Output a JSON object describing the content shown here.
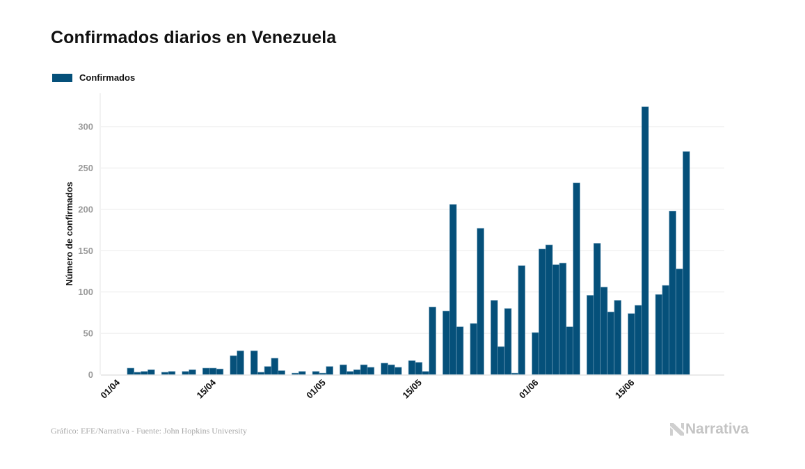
{
  "title": "Confirmados diarios en Venezuela",
  "footer": {
    "source": "Gráfico: EFE/Narrativa - Fuente: John Hopkins University",
    "logo_text": "Narrativa",
    "logo_icon": "narrativa-n-icon"
  },
  "colors": {
    "bar": "#05507a",
    "grid": "#eaeaea",
    "ytick": "#9a9a9a",
    "text": "#111111"
  },
  "chart_data": {
    "type": "bar",
    "title": "Confirmados diarios en Venezuela",
    "xlabel": "",
    "ylabel": "Número de confirmados",
    "ylim": [
      0,
      335
    ],
    "yticks": [
      0,
      50,
      100,
      150,
      200,
      250,
      300
    ],
    "grid": true,
    "legend": {
      "position": "top-left",
      "entries": [
        "Confirmados"
      ]
    },
    "x_start_date": "01/04",
    "x_day_count": 88,
    "xtick_labels": [
      {
        "label": "01/04",
        "day": 0
      },
      {
        "label": "15/04",
        "day": 14
      },
      {
        "label": "01/05",
        "day": 30
      },
      {
        "label": "15/05",
        "day": 44
      },
      {
        "label": "01/06",
        "day": 61
      },
      {
        "label": "15/06",
        "day": 75
      }
    ],
    "series": [
      {
        "name": "Confirmados",
        "values": [
          0,
          8,
          3,
          4,
          6,
          0,
          3,
          4,
          0,
          4,
          6,
          0,
          8,
          8,
          7,
          0,
          23,
          29,
          0,
          29,
          3,
          10,
          20,
          5,
          0,
          2,
          4,
          0,
          4,
          2,
          10,
          0,
          12,
          4,
          6,
          12,
          9,
          0,
          14,
          12,
          9,
          0,
          17,
          15,
          4,
          82,
          0,
          77,
          206,
          58,
          0,
          62,
          177,
          0,
          90,
          34,
          80,
          2,
          132,
          0,
          51,
          152,
          157,
          133,
          135,
          58,
          232,
          0,
          96,
          159,
          106,
          76,
          90,
          0,
          74,
          84,
          324,
          0,
          97,
          108,
          198,
          128,
          270
        ]
      }
    ]
  }
}
